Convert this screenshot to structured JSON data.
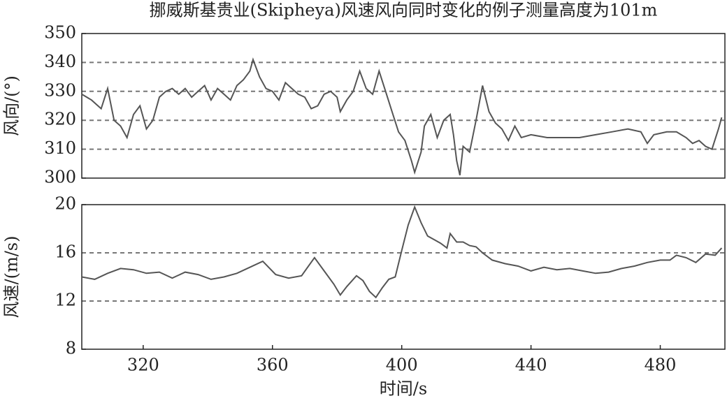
{
  "title": "挪威斯基贵业(Skipheya)风速风向同时变化的例子测量高度为101m",
  "chart_data": [
    {
      "type": "line",
      "ylabel": "风向/(°)",
      "color": "#555555",
      "grid": true,
      "xlim": [
        301,
        500
      ],
      "ylim": [
        300,
        350
      ],
      "yticks": [
        300,
        310,
        320,
        330,
        340,
        350
      ],
      "x": [
        301,
        304,
        307,
        309,
        311,
        313,
        315,
        317,
        319,
        321,
        323,
        325,
        327,
        329,
        331,
        333,
        335,
        337,
        339,
        341,
        343,
        345,
        347,
        349,
        351,
        353,
        354,
        356,
        358,
        360,
        362,
        364,
        366,
        368,
        370,
        372,
        374,
        376,
        378,
        380,
        381,
        383,
        385,
        387,
        389,
        391,
        393,
        395,
        397,
        399,
        401,
        403,
        404,
        406,
        407,
        409,
        411,
        413,
        415,
        416,
        417,
        418,
        419,
        421,
        423,
        425,
        427,
        429,
        431,
        433,
        435,
        437,
        440,
        445,
        450,
        455,
        460,
        465,
        470,
        474,
        476,
        478,
        482,
        485,
        488,
        490,
        492,
        494,
        496,
        498,
        499
      ],
      "values": [
        329,
        327,
        324,
        331,
        320,
        318,
        314,
        322,
        325,
        317,
        320,
        328,
        330,
        331,
        329,
        331,
        328,
        330,
        332,
        327,
        331,
        329,
        327,
        332,
        334,
        337,
        341,
        335,
        331,
        330,
        327,
        333,
        331,
        329,
        328,
        324,
        325,
        329,
        330,
        328,
        323,
        327,
        330,
        337,
        331,
        329,
        337,
        330,
        323,
        316,
        313,
        306,
        302,
        309,
        318,
        322,
        314,
        320,
        322,
        315,
        306,
        301,
        311,
        309,
        320,
        332,
        323,
        319,
        317,
        313,
        318,
        314,
        315,
        314,
        314,
        314,
        315,
        316,
        317,
        316,
        312,
        315,
        316,
        316,
        314,
        312,
        313,
        311,
        310,
        317,
        321
      ]
    },
    {
      "type": "line",
      "ylabel": "风速/(m/s)",
      "xlabel": "时间/s",
      "color": "#555555",
      "grid": true,
      "xlim": [
        301,
        500
      ],
      "ylim": [
        8,
        20
      ],
      "yticks": [
        8,
        12,
        16,
        20
      ],
      "xticks": [
        320,
        360,
        400,
        440,
        480
      ],
      "x": [
        301,
        305,
        309,
        313,
        317,
        321,
        325,
        329,
        333,
        337,
        341,
        345,
        349,
        353,
        357,
        361,
        365,
        369,
        373,
        376,
        379,
        381,
        383,
        386,
        388,
        390,
        392,
        394,
        396,
        398,
        400,
        402,
        404,
        406,
        408,
        410,
        412,
        414,
        415,
        417,
        419,
        421,
        423,
        425,
        428,
        432,
        436,
        440,
        444,
        448,
        452,
        456,
        460,
        464,
        468,
        472,
        476,
        480,
        483,
        485,
        488,
        491,
        494,
        497,
        499
      ],
      "values": [
        14,
        13.8,
        14.3,
        14.7,
        14.6,
        14.3,
        14.4,
        13.9,
        14.4,
        14.2,
        13.8,
        14,
        14.3,
        14.8,
        15.3,
        14.2,
        13.9,
        14.1,
        15.6,
        14.5,
        13.4,
        12.5,
        13.2,
        14.1,
        13.7,
        12.8,
        12.3,
        13.1,
        13.8,
        14,
        16.2,
        18.3,
        19.8,
        18.5,
        17.4,
        17.1,
        16.8,
        16.4,
        17.6,
        16.9,
        16.9,
        16.6,
        16.5,
        16,
        15.4,
        15.1,
        14.9,
        14.5,
        14.8,
        14.6,
        14.7,
        14.5,
        14.3,
        14.4,
        14.7,
        14.9,
        15.2,
        15.4,
        15.4,
        15.8,
        15.6,
        15.2,
        15.9,
        15.8,
        16.4
      ]
    }
  ]
}
